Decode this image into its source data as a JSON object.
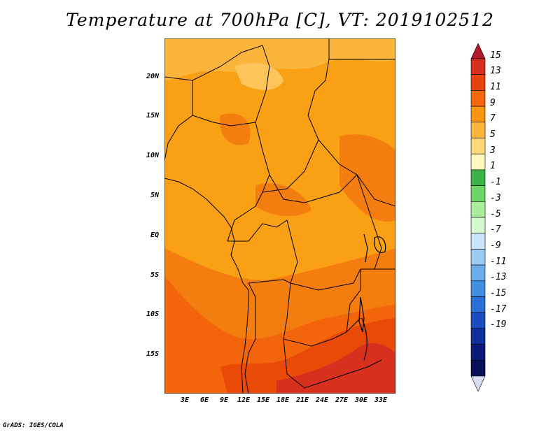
{
  "title": "Temperature at 700hPa [C], VT: 2019102512",
  "credit": "GrADS: IGES/COLA",
  "map": {
    "region": "Central Africa",
    "lat_labels": [
      "20N",
      "15N",
      "10N",
      "5N",
      "EQ",
      "5S",
      "10S",
      "15S"
    ],
    "lon_labels": [
      "3E",
      "6E",
      "9E",
      "12E",
      "15E",
      "18E",
      "21E",
      "24E",
      "27E",
      "30E",
      "33E"
    ],
    "lon_range": [
      0,
      35
    ],
    "lat_range": [
      -20,
      24
    ]
  },
  "colorbar": {
    "labels": [
      "15",
      "13",
      "11",
      "9",
      "7",
      "5",
      "3",
      "1",
      "-1",
      "-3",
      "-5",
      "-7",
      "-9",
      "-11",
      "-13",
      "-15",
      "-17",
      "-19"
    ],
    "colors": [
      "#d7301f",
      "#e8420e",
      "#f4670a",
      "#f99512",
      "#fbb53a",
      "#fdd97a",
      "#fff7bc",
      "#3bb34a",
      "#6dd46a",
      "#a8ec9c",
      "#d6f8d0",
      "#c9e4f9",
      "#9ccaf2",
      "#6baeea",
      "#418fe1",
      "#2a6fd6",
      "#1a4cc0",
      "#0f2f9c",
      "#0b1a78",
      "#08105a"
    ],
    "top_arrow_color": "#b2182b",
    "bottom_arrow_color": "#d9dcf5"
  }
}
